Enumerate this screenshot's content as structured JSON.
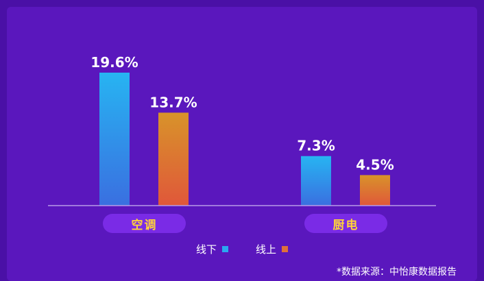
{
  "chart_data": {
    "type": "bar",
    "categories": [
      "空调",
      "厨电"
    ],
    "series": [
      {
        "name": "线下",
        "values": [
          19.6,
          7.3
        ],
        "labels": [
          "19.6%",
          "7.3%"
        ],
        "gradient": [
          "#27b4f2",
          "#3a6fe0"
        ]
      },
      {
        "name": "线上",
        "values": [
          13.7,
          4.5
        ],
        "labels": [
          "13.7%",
          "4.5%"
        ],
        "gradient": [
          "#d8932a",
          "#e0573a"
        ]
      }
    ],
    "unit": "%",
    "ylim": [
      0,
      22
    ],
    "grid": false,
    "legend_position": "bottom"
  },
  "legend": {
    "offline_label": "线下",
    "online_label": "线上",
    "offline_color": "#2aa8f0",
    "online_color": "#e0703a"
  },
  "source_note": "*数据来源：中怡康数据报告",
  "colors": {
    "background": "#4a10a6",
    "panel": "#5a17bd",
    "pill": "#7a2be6",
    "pill_text": "#ffd23a",
    "axis": "#b79be8"
  }
}
